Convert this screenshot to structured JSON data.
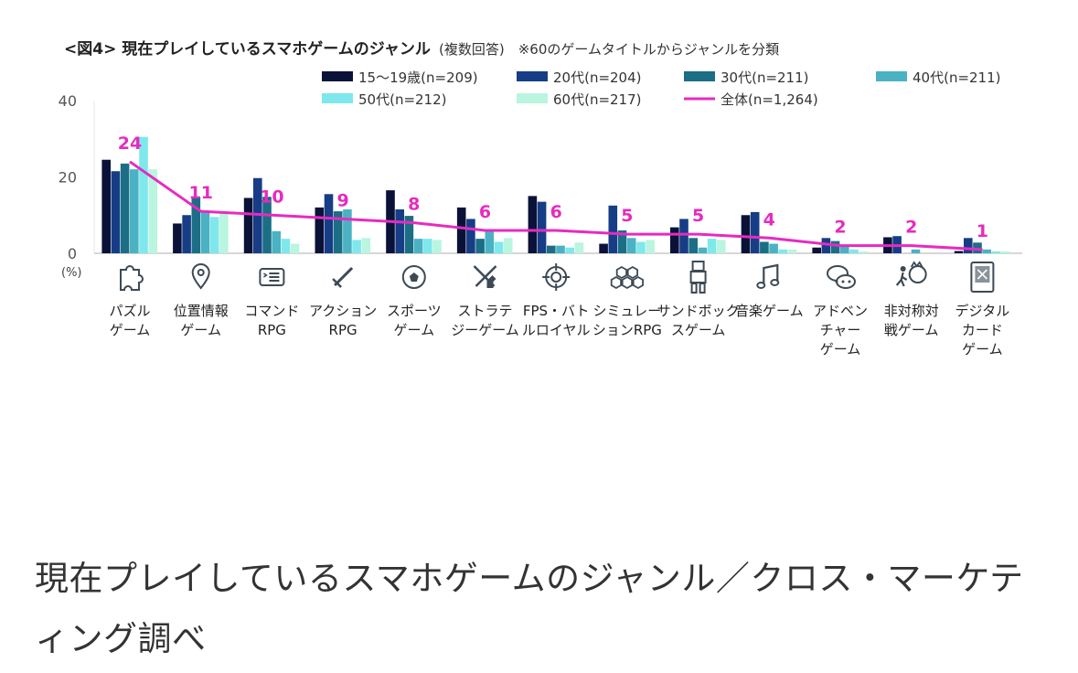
{
  "chart_data": {
    "type": "bar",
    "title": "<図4> 現在プレイしているスマホゲームのジャンル",
    "subtitle": "(複数回答)　※60のゲームタイトルからジャンルを分類",
    "unit_label": "(%)",
    "ylim": [
      0,
      40
    ],
    "yticks": [
      0,
      20,
      40
    ],
    "categories": [
      "パズル\nゲーム",
      "位置情報\nゲーム",
      "コマンド\nRPG",
      "アクション\nRPG",
      "スポーツ\nゲーム",
      "ストラテ\nジーゲーム",
      "FPS・バト\nルロイヤル",
      "シミュレー\nションRPG",
      "サンドボック\nスゲーム",
      "音楽ゲーム",
      "アドベン\nチャー\nゲーム",
      "非対称対\n戦ゲーム",
      "デジタル\nカード\nゲーム"
    ],
    "category_icons": [
      "puzzle-icon",
      "map-pin-icon",
      "command-window-icon",
      "sword-icon",
      "soccer-ball-icon",
      "crossed-swords-knight-icon",
      "crosshair-icon",
      "hexagon-cluster-icon",
      "blocky-character-icon",
      "music-note-icon",
      "speech-bubbles-icon",
      "chase-figures-icon",
      "card-icon"
    ],
    "series": [
      {
        "name": "15〜19歳(n=209)",
        "color": "#0b1238",
        "values": [
          24.5,
          7.8,
          14.5,
          12.0,
          16.5,
          12.0,
          15.0,
          2.5,
          6.8,
          10.0,
          1.5,
          4.2,
          0.6
        ]
      },
      {
        "name": "20代(n=204)",
        "color": "#163d86",
        "values": [
          21.5,
          10.0,
          19.7,
          15.5,
          11.5,
          9.0,
          13.5,
          12.5,
          9.0,
          10.8,
          4.0,
          4.5,
          4.0
        ]
      },
      {
        "name": "30代(n=211)",
        "color": "#1b6e85",
        "values": [
          23.5,
          14.8,
          14.8,
          11.0,
          9.8,
          3.8,
          2.0,
          6.0,
          4.0,
          3.0,
          3.2,
          0.0,
          2.8
        ]
      },
      {
        "name": "40代(n=211)",
        "color": "#4ab2c3",
        "values": [
          22.0,
          11.0,
          5.8,
          11.5,
          3.8,
          6.0,
          2.0,
          4.0,
          1.5,
          2.5,
          2.0,
          1.0,
          1.0
        ]
      },
      {
        "name": "50代(n=212)",
        "color": "#7ee8ed",
        "values": [
          30.5,
          9.5,
          3.8,
          3.5,
          3.8,
          3.0,
          1.5,
          3.0,
          3.8,
          1.0,
          1.0,
          0.0,
          0.5
        ]
      },
      {
        "name": "60代(n=217)",
        "color": "#b9f5df",
        "values": [
          22.0,
          11.0,
          2.5,
          4.0,
          3.5,
          4.0,
          2.8,
          3.5,
          3.5,
          1.0,
          0.5,
          0.0,
          0.5
        ]
      }
    ],
    "total": {
      "name": "全体(n=1,264)",
      "color": "#e62bc0",
      "values": [
        24,
        11,
        10,
        9,
        8,
        6,
        6,
        5,
        5,
        4,
        2,
        2,
        1
      ],
      "labels": [
        "24",
        "11",
        "10",
        "9",
        "8",
        "6",
        "6",
        "5",
        "5",
        "4",
        "2",
        "2",
        "1"
      ]
    },
    "legend_position": "top-right",
    "grid": false
  },
  "caption": "現在プレイしているスマホゲームのジャンル／クロス・マーケティング調べ"
}
